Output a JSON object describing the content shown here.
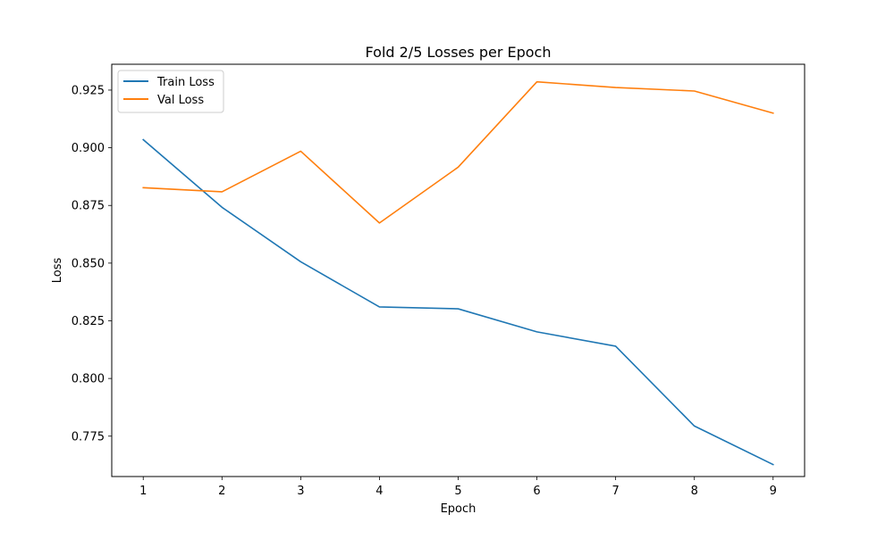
{
  "chart_data": {
    "type": "line",
    "title": "Fold 2/5 Losses per Epoch",
    "xlabel": "Epoch",
    "ylabel": "Loss",
    "x": [
      1,
      2,
      3,
      4,
      5,
      6,
      7,
      8,
      9
    ],
    "x_ticks": [
      "1",
      "2",
      "3",
      "4",
      "5",
      "6",
      "7",
      "8",
      "9"
    ],
    "y_ticks": [
      "0.775",
      "0.800",
      "0.825",
      "0.850",
      "0.875",
      "0.900",
      "0.925"
    ],
    "xlim": [
      0.6,
      9.4
    ],
    "ylim": [
      0.7575,
      0.9362
    ],
    "grid": false,
    "legend_position": "top-left",
    "series": [
      {
        "name": "Train Loss",
        "color": "#1f77b4",
        "values": [
          0.9035,
          0.8742,
          0.8506,
          0.831,
          0.8302,
          0.8202,
          0.814,
          0.7794,
          0.7627
        ]
      },
      {
        "name": "Val Loss",
        "color": "#ff7f0e",
        "values": [
          0.8827,
          0.8809,
          0.8985,
          0.8674,
          0.8916,
          0.9286,
          0.9261,
          0.9246,
          0.915
        ]
      }
    ]
  }
}
